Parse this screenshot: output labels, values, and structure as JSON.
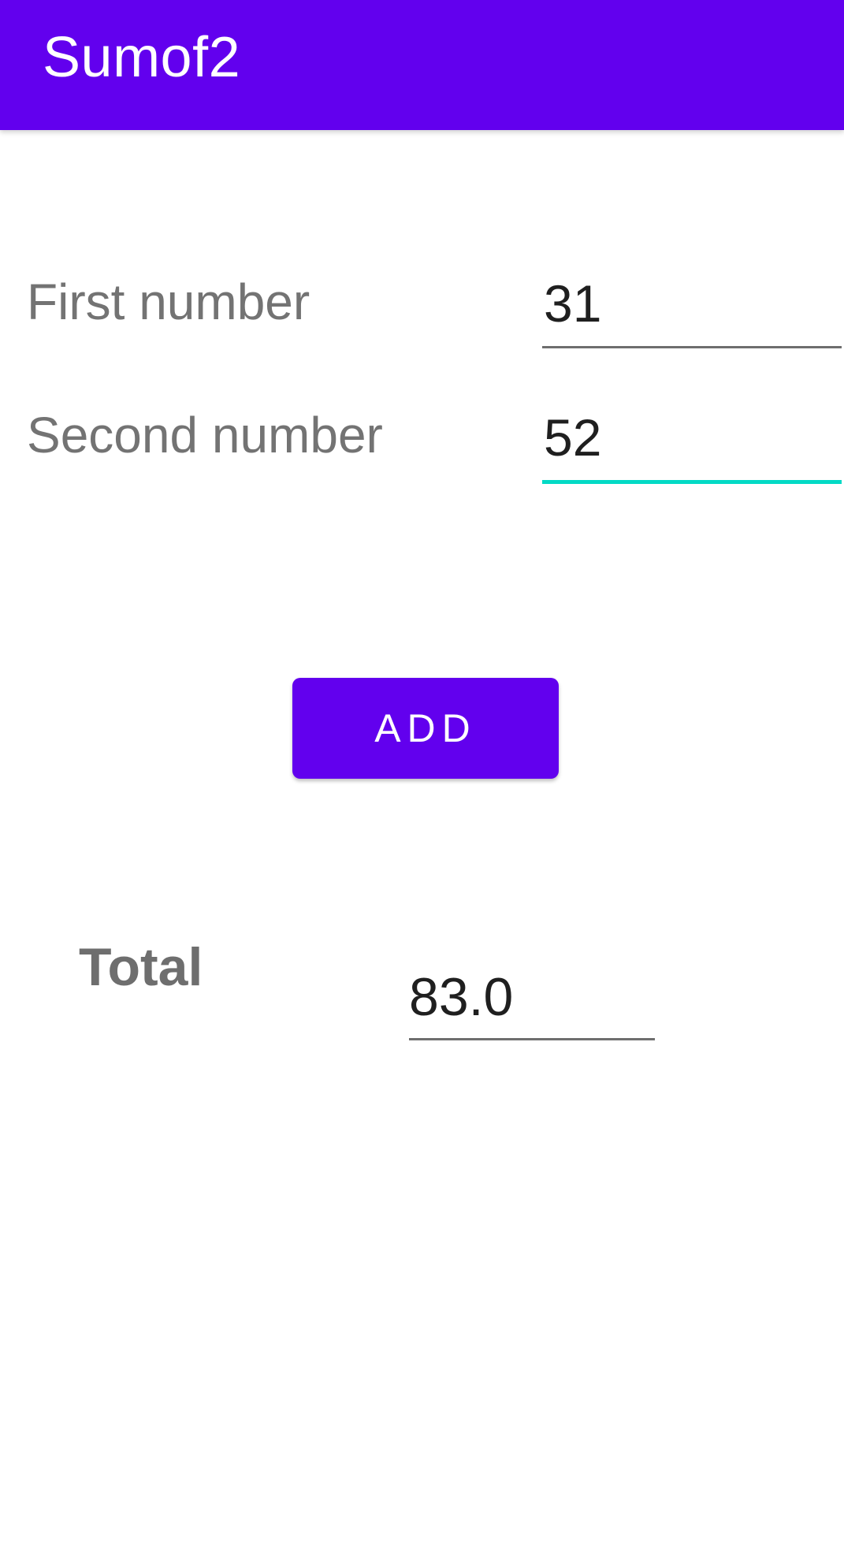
{
  "app_bar": {
    "title": "Sumof2",
    "color": "#6200EE"
  },
  "form": {
    "first": {
      "label": "First number",
      "value": "31"
    },
    "second": {
      "label": "Second number",
      "value": "52",
      "focused_underline_color": "#03DAC5"
    }
  },
  "actions": {
    "add_label": "ADD"
  },
  "result": {
    "label": "Total",
    "value": "83.0"
  }
}
